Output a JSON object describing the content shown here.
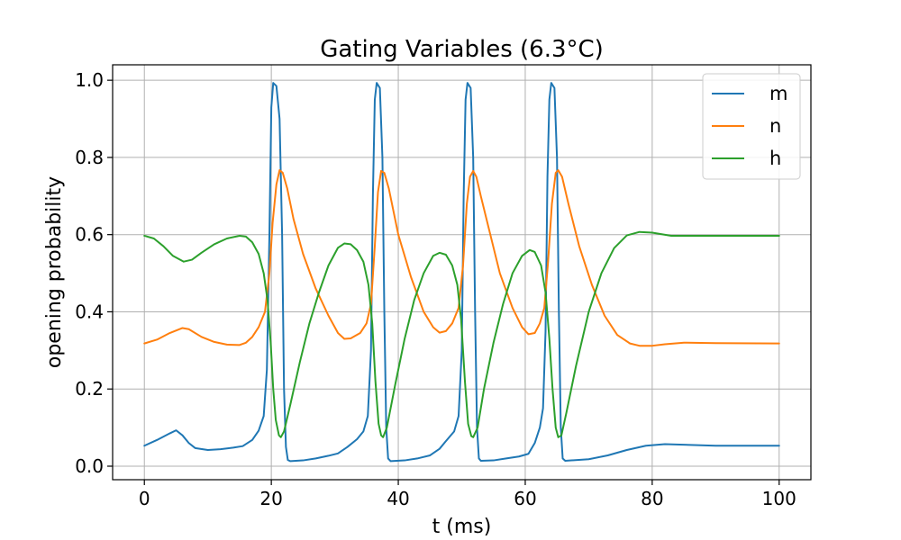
{
  "chart_data": {
    "type": "line",
    "title": "Gating Variables (6.3°C)",
    "xlabel": "t (ms)",
    "ylabel": "opening probability",
    "xlim": [
      -5,
      105
    ],
    "ylim": [
      -0.035,
      1.04
    ],
    "xticks": [
      0,
      20,
      40,
      60,
      80,
      100
    ],
    "xtick_labels": [
      "0",
      "20",
      "40",
      "60",
      "80",
      "100"
    ],
    "yticks": [
      0.0,
      0.2,
      0.4,
      0.6,
      0.8,
      1.0
    ],
    "ytick_labels": [
      "0.0",
      "0.2",
      "0.4",
      "0.6",
      "0.8",
      "1.0"
    ],
    "grid": true,
    "legend_position": "top-right",
    "series": [
      {
        "name": "m",
        "color": "#1f77b4",
        "points": [
          [
            0,
            0.053
          ],
          [
            2,
            0.068
          ],
          [
            4,
            0.085
          ],
          [
            5,
            0.093
          ],
          [
            6,
            0.08
          ],
          [
            7,
            0.06
          ],
          [
            8,
            0.047
          ],
          [
            10,
            0.042
          ],
          [
            12,
            0.044
          ],
          [
            14,
            0.048
          ],
          [
            15.5,
            0.052
          ],
          [
            17,
            0.068
          ],
          [
            18,
            0.092
          ],
          [
            18.8,
            0.13
          ],
          [
            19.3,
            0.25
          ],
          [
            19.7,
            0.6
          ],
          [
            20,
            0.93
          ],
          [
            20.3,
            0.993
          ],
          [
            20.8,
            0.985
          ],
          [
            21.3,
            0.9
          ],
          [
            21.7,
            0.6
          ],
          [
            22,
            0.2
          ],
          [
            22.3,
            0.05
          ],
          [
            22.6,
            0.016
          ],
          [
            23,
            0.013
          ],
          [
            25,
            0.015
          ],
          [
            27,
            0.02
          ],
          [
            29,
            0.027
          ],
          [
            30.5,
            0.033
          ],
          [
            32,
            0.05
          ],
          [
            33.5,
            0.07
          ],
          [
            34.5,
            0.09
          ],
          [
            35.2,
            0.13
          ],
          [
            35.7,
            0.3
          ],
          [
            36,
            0.7
          ],
          [
            36.3,
            0.95
          ],
          [
            36.6,
            0.993
          ],
          [
            37.1,
            0.98
          ],
          [
            37.5,
            0.8
          ],
          [
            37.8,
            0.4
          ],
          [
            38.1,
            0.1
          ],
          [
            38.4,
            0.02
          ],
          [
            38.8,
            0.013
          ],
          [
            41,
            0.015
          ],
          [
            43,
            0.02
          ],
          [
            45,
            0.028
          ],
          [
            46.5,
            0.045
          ],
          [
            47.5,
            0.065
          ],
          [
            48.8,
            0.09
          ],
          [
            49.5,
            0.13
          ],
          [
            50,
            0.3
          ],
          [
            50.3,
            0.7
          ],
          [
            50.6,
            0.95
          ],
          [
            50.9,
            0.993
          ],
          [
            51.4,
            0.98
          ],
          [
            51.8,
            0.8
          ],
          [
            52.1,
            0.4
          ],
          [
            52.4,
            0.1
          ],
          [
            52.7,
            0.02
          ],
          [
            53,
            0.014
          ],
          [
            55,
            0.015
          ],
          [
            57,
            0.02
          ],
          [
            59,
            0.025
          ],
          [
            60.5,
            0.032
          ],
          [
            61.5,
            0.06
          ],
          [
            62.3,
            0.1
          ],
          [
            62.8,
            0.15
          ],
          [
            63.2,
            0.35
          ],
          [
            63.5,
            0.75
          ],
          [
            63.8,
            0.95
          ],
          [
            64.1,
            0.993
          ],
          [
            64.6,
            0.98
          ],
          [
            65,
            0.8
          ],
          [
            65.3,
            0.4
          ],
          [
            65.6,
            0.1
          ],
          [
            65.9,
            0.02
          ],
          [
            66.3,
            0.014
          ],
          [
            70,
            0.018
          ],
          [
            73,
            0.028
          ],
          [
            76,
            0.042
          ],
          [
            79,
            0.053
          ],
          [
            82,
            0.057
          ],
          [
            86,
            0.055
          ],
          [
            90,
            0.053
          ],
          [
            100,
            0.053
          ]
        ]
      },
      {
        "name": "n",
        "color": "#ff7f0e",
        "points": [
          [
            0,
            0.318
          ],
          [
            2,
            0.328
          ],
          [
            4,
            0.345
          ],
          [
            6,
            0.358
          ],
          [
            7,
            0.355
          ],
          [
            9,
            0.335
          ],
          [
            11,
            0.322
          ],
          [
            13,
            0.315
          ],
          [
            15,
            0.314
          ],
          [
            16,
            0.32
          ],
          [
            17,
            0.335
          ],
          [
            18,
            0.36
          ],
          [
            19,
            0.4
          ],
          [
            19.7,
            0.5
          ],
          [
            20.2,
            0.63
          ],
          [
            20.8,
            0.73
          ],
          [
            21.3,
            0.767
          ],
          [
            21.8,
            0.76
          ],
          [
            22.5,
            0.72
          ],
          [
            23.5,
            0.64
          ],
          [
            25,
            0.55
          ],
          [
            27,
            0.46
          ],
          [
            29,
            0.39
          ],
          [
            30.5,
            0.345
          ],
          [
            31.5,
            0.33
          ],
          [
            32.5,
            0.331
          ],
          [
            34,
            0.345
          ],
          [
            35,
            0.37
          ],
          [
            35.7,
            0.42
          ],
          [
            36.3,
            0.57
          ],
          [
            36.8,
            0.71
          ],
          [
            37.3,
            0.765
          ],
          [
            37.8,
            0.76
          ],
          [
            38.5,
            0.72
          ],
          [
            40,
            0.6
          ],
          [
            42,
            0.49
          ],
          [
            44,
            0.4
          ],
          [
            45.5,
            0.36
          ],
          [
            46.5,
            0.346
          ],
          [
            47.5,
            0.35
          ],
          [
            48.5,
            0.37
          ],
          [
            49.5,
            0.41
          ],
          [
            50.2,
            0.52
          ],
          [
            50.8,
            0.68
          ],
          [
            51.3,
            0.75
          ],
          [
            51.8,
            0.765
          ],
          [
            52.3,
            0.75
          ],
          [
            53,
            0.7
          ],
          [
            54.5,
            0.6
          ],
          [
            56,
            0.5
          ],
          [
            58,
            0.41
          ],
          [
            59.5,
            0.36
          ],
          [
            60.5,
            0.342
          ],
          [
            61.5,
            0.345
          ],
          [
            62.3,
            0.37
          ],
          [
            63,
            0.41
          ],
          [
            63.6,
            0.53
          ],
          [
            64.2,
            0.68
          ],
          [
            64.8,
            0.76
          ],
          [
            65.2,
            0.767
          ],
          [
            65.8,
            0.75
          ],
          [
            66.8,
            0.68
          ],
          [
            68.5,
            0.57
          ],
          [
            70.5,
            0.47
          ],
          [
            72.5,
            0.39
          ],
          [
            74.5,
            0.34
          ],
          [
            76.5,
            0.318
          ],
          [
            78,
            0.312
          ],
          [
            80,
            0.312
          ],
          [
            82,
            0.316
          ],
          [
            85,
            0.32
          ],
          [
            90,
            0.319
          ],
          [
            100,
            0.318
          ]
        ]
      },
      {
        "name": "h",
        "color": "#2ca02c",
        "points": [
          [
            0,
            0.597
          ],
          [
            1.5,
            0.59
          ],
          [
            3,
            0.57
          ],
          [
            4.5,
            0.545
          ],
          [
            6.2,
            0.53
          ],
          [
            7.5,
            0.535
          ],
          [
            9,
            0.553
          ],
          [
            11,
            0.575
          ],
          [
            13,
            0.59
          ],
          [
            15,
            0.597
          ],
          [
            16,
            0.595
          ],
          [
            17,
            0.58
          ],
          [
            18,
            0.55
          ],
          [
            18.8,
            0.5
          ],
          [
            19.4,
            0.43
          ],
          [
            19.9,
            0.32
          ],
          [
            20.3,
            0.2
          ],
          [
            20.7,
            0.12
          ],
          [
            21.2,
            0.08
          ],
          [
            21.5,
            0.075
          ],
          [
            22,
            0.09
          ],
          [
            23,
            0.16
          ],
          [
            24.5,
            0.27
          ],
          [
            26,
            0.37
          ],
          [
            27.5,
            0.45
          ],
          [
            29,
            0.52
          ],
          [
            30.5,
            0.566
          ],
          [
            31.5,
            0.577
          ],
          [
            32.5,
            0.575
          ],
          [
            33.5,
            0.56
          ],
          [
            34.5,
            0.53
          ],
          [
            35.3,
            0.47
          ],
          [
            35.9,
            0.37
          ],
          [
            36.4,
            0.22
          ],
          [
            36.9,
            0.11
          ],
          [
            37.3,
            0.08
          ],
          [
            37.6,
            0.075
          ],
          [
            38.2,
            0.1
          ],
          [
            39.5,
            0.21
          ],
          [
            41,
            0.33
          ],
          [
            42.5,
            0.43
          ],
          [
            44,
            0.5
          ],
          [
            45.5,
            0.545
          ],
          [
            46.5,
            0.553
          ],
          [
            47.5,
            0.548
          ],
          [
            48.5,
            0.52
          ],
          [
            49.3,
            0.47
          ],
          [
            49.9,
            0.38
          ],
          [
            50.5,
            0.22
          ],
          [
            51,
            0.11
          ],
          [
            51.5,
            0.078
          ],
          [
            51.8,
            0.075
          ],
          [
            52.5,
            0.1
          ],
          [
            53.5,
            0.2
          ],
          [
            55,
            0.32
          ],
          [
            56.5,
            0.42
          ],
          [
            58,
            0.5
          ],
          [
            59.5,
            0.545
          ],
          [
            60.7,
            0.56
          ],
          [
            61.5,
            0.555
          ],
          [
            62.5,
            0.52
          ],
          [
            63.2,
            0.45
          ],
          [
            63.8,
            0.33
          ],
          [
            64.3,
            0.2
          ],
          [
            64.8,
            0.1
          ],
          [
            65.2,
            0.075
          ],
          [
            65.7,
            0.08
          ],
          [
            66.5,
            0.14
          ],
          [
            68,
            0.26
          ],
          [
            70,
            0.4
          ],
          [
            72,
            0.5
          ],
          [
            74,
            0.565
          ],
          [
            76,
            0.598
          ],
          [
            78,
            0.607
          ],
          [
            80,
            0.605
          ],
          [
            83,
            0.597
          ],
          [
            88,
            0.597
          ],
          [
            100,
            0.597
          ]
        ]
      }
    ]
  }
}
